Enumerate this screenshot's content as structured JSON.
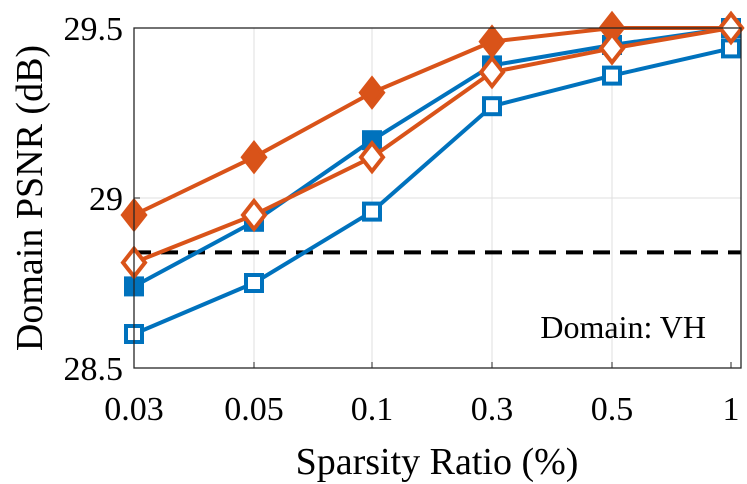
{
  "chart_data": {
    "type": "line",
    "xlabel": "Sparsity Ratio (%)",
    "ylabel": "Domain PSNR (dB)",
    "categories": [
      "0.03",
      "0.05",
      "0.1",
      "0.3",
      "0.5",
      "1"
    ],
    "yticks": [
      "28.5",
      "29",
      "29.5"
    ],
    "ylim": [
      28.5,
      29.5
    ],
    "grid": true,
    "annotation": "Domain: VH",
    "colors": {
      "blue": "#0072bd",
      "orange": "#d95319",
      "baseline": "#000000"
    },
    "baseline": {
      "value": 28.84,
      "style": "dashed"
    },
    "series": [
      {
        "name": "blue-filled-square",
        "color": "#0072bd",
        "marker": "square",
        "filled": true,
        "values": [
          28.74,
          28.93,
          29.17,
          29.39,
          29.45,
          29.5
        ]
      },
      {
        "name": "blue-open-square",
        "color": "#0072bd",
        "marker": "square",
        "filled": false,
        "values": [
          28.6,
          28.75,
          28.96,
          29.27,
          29.36,
          29.44
        ]
      },
      {
        "name": "orange-filled-diamond",
        "color": "#d95319",
        "marker": "diamond",
        "filled": true,
        "values": [
          28.95,
          29.12,
          29.31,
          29.46,
          29.5,
          29.5
        ]
      },
      {
        "name": "orange-open-diamond",
        "color": "#d95319",
        "marker": "diamond",
        "filled": false,
        "values": [
          28.81,
          28.95,
          29.12,
          29.37,
          29.44,
          29.5
        ]
      }
    ]
  }
}
